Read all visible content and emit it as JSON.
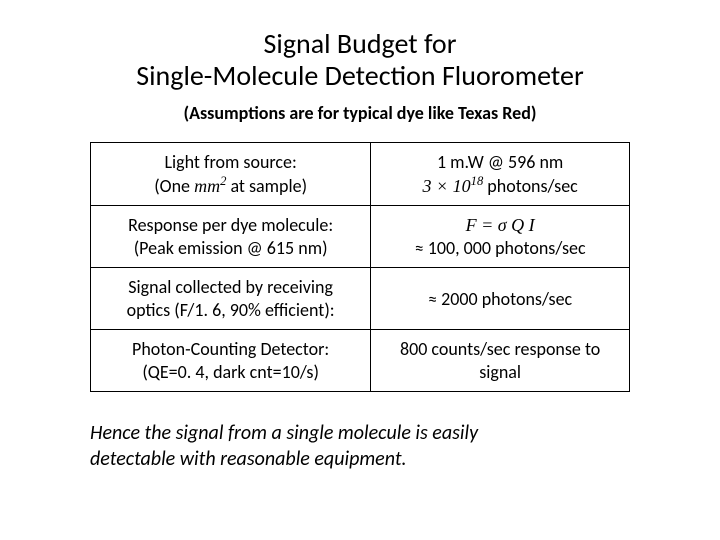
{
  "title_line1": "Signal Budget for",
  "title_line2": "Single-Molecule Detection Fluorometer",
  "subtitle": "(Assumptions are for typical dye like Texas Red)",
  "rows": [
    {
      "left_a": "Light from source:",
      "left_b_pre": "(One ",
      "left_b_math": "mm",
      "left_b_sup": "2",
      "left_b_post": " at sample)",
      "right_a": "1 m.W @ 596 nm",
      "right_b_pre": "3 × 10",
      "right_b_sup": "18",
      "right_b_post": " photons/sec"
    },
    {
      "left_a": "Response per dye molecule:",
      "left_b": "(Peak emission @ 615 nm)",
      "right_a_math": "F = σ Q I",
      "right_b": "≈ 100, 000 photons/sec"
    },
    {
      "left_a": "Signal collected by receiving",
      "left_b": "optics (F/1. 6, 90% efficient):",
      "right": "≈ 2000 photons/sec"
    },
    {
      "left_a": "Photon-Counting Detector:",
      "left_b": "(QE=0. 4, dark cnt=10/s)",
      "right_a": "800 counts/sec response to",
      "right_b": "signal"
    }
  ],
  "conclusion_a": "Hence the signal from a single molecule is easily",
  "conclusion_b": "detectable with reasonable equipment."
}
